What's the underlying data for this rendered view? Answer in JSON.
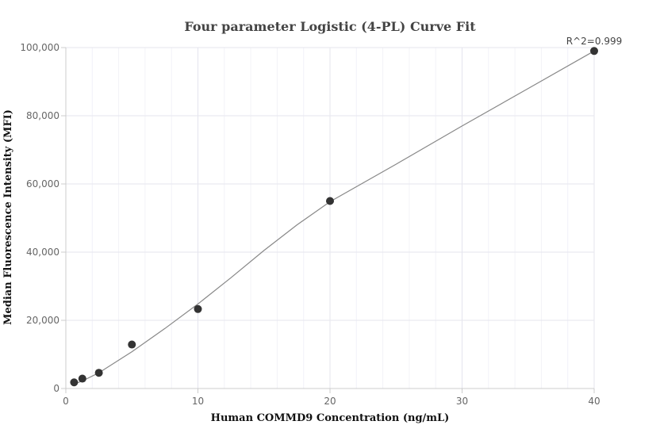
{
  "chart_data": {
    "type": "scatter",
    "title": "Four parameter Logistic (4-PL) Curve Fit",
    "xlabel": "Human COMMD9 Concentration (ng/mL)",
    "ylabel": "Median Fluorescence Intensity (MFI)",
    "xlim": [
      0,
      40
    ],
    "ylim": [
      0,
      100000
    ],
    "x_ticks": [
      0,
      10,
      20,
      30,
      40
    ],
    "y_ticks": [
      0,
      20000,
      40000,
      60000,
      80000,
      100000
    ],
    "x_tick_labels": [
      "0",
      "10",
      "20",
      "30",
      "40"
    ],
    "y_tick_labels": [
      "0",
      "20,000",
      "40,000",
      "60,000",
      "80,000",
      "100,000"
    ],
    "grid": true,
    "series": [
      {
        "points": [
          {
            "x": 0.625,
            "y": 1800
          },
          {
            "x": 1.25,
            "y": 2900
          },
          {
            "x": 2.5,
            "y": 4600
          },
          {
            "x": 5,
            "y": 12900
          },
          {
            "x": 10,
            "y": 23300
          },
          {
            "x": 20,
            "y": 55000
          },
          {
            "x": 40,
            "y": 99000
          }
        ],
        "color": "#333333"
      }
    ],
    "fit_curve": {
      "points": [
        {
          "x": 0.625,
          "y": 1300
        },
        {
          "x": 1.25,
          "y": 2200
        },
        {
          "x": 2.5,
          "y": 4600
        },
        {
          "x": 5,
          "y": 10800
        },
        {
          "x": 7.5,
          "y": 17600
        },
        {
          "x": 10,
          "y": 24800
        },
        {
          "x": 12.5,
          "y": 32500
        },
        {
          "x": 15,
          "y": 40500
        },
        {
          "x": 17.5,
          "y": 48000
        },
        {
          "x": 20,
          "y": 54800
        },
        {
          "x": 25,
          "y": 65800
        },
        {
          "x": 30,
          "y": 77000
        },
        {
          "x": 35,
          "y": 88000
        },
        {
          "x": 40,
          "y": 99000
        }
      ],
      "color": "#888888"
    },
    "annotation": "R^2=0.999"
  }
}
